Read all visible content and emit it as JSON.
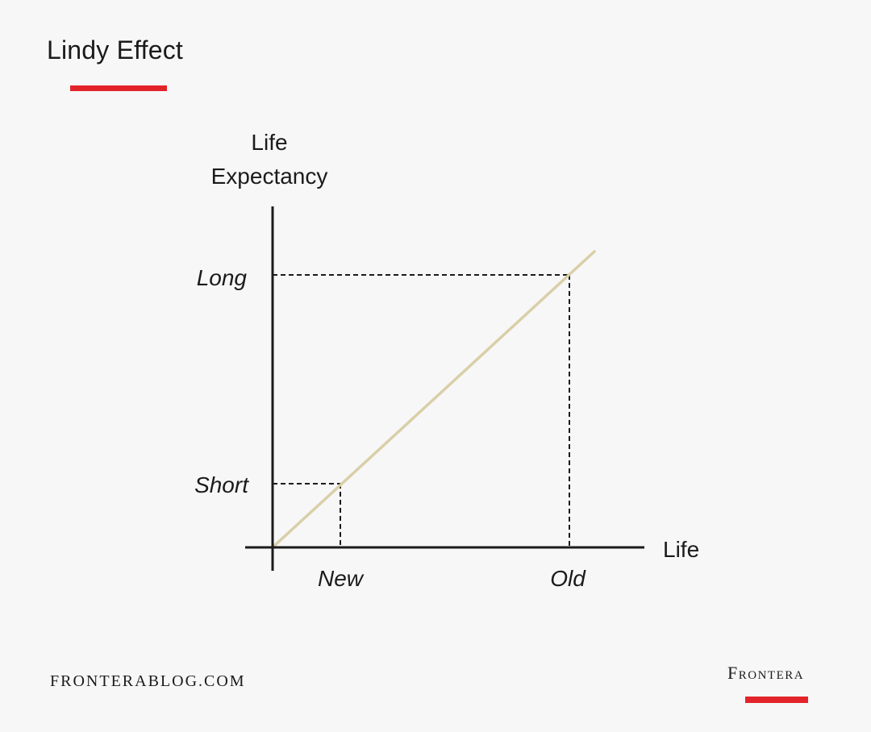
{
  "header": {
    "title": "Lindy Effect"
  },
  "footer": {
    "site": "FRONTERABLOG.COM",
    "brand": "Frontera"
  },
  "colors": {
    "accent": "#e3232a",
    "line": "#d9cfa8",
    "axis": "#1b1b1b",
    "background": "#f7f7f7"
  },
  "diagram": {
    "y_axis_label_line1": "Life",
    "y_axis_label_line2": "Expectancy",
    "x_axis_label": "Life",
    "y_ticks": [
      "Long",
      "Short"
    ],
    "x_ticks": [
      "New",
      "Old"
    ]
  }
}
